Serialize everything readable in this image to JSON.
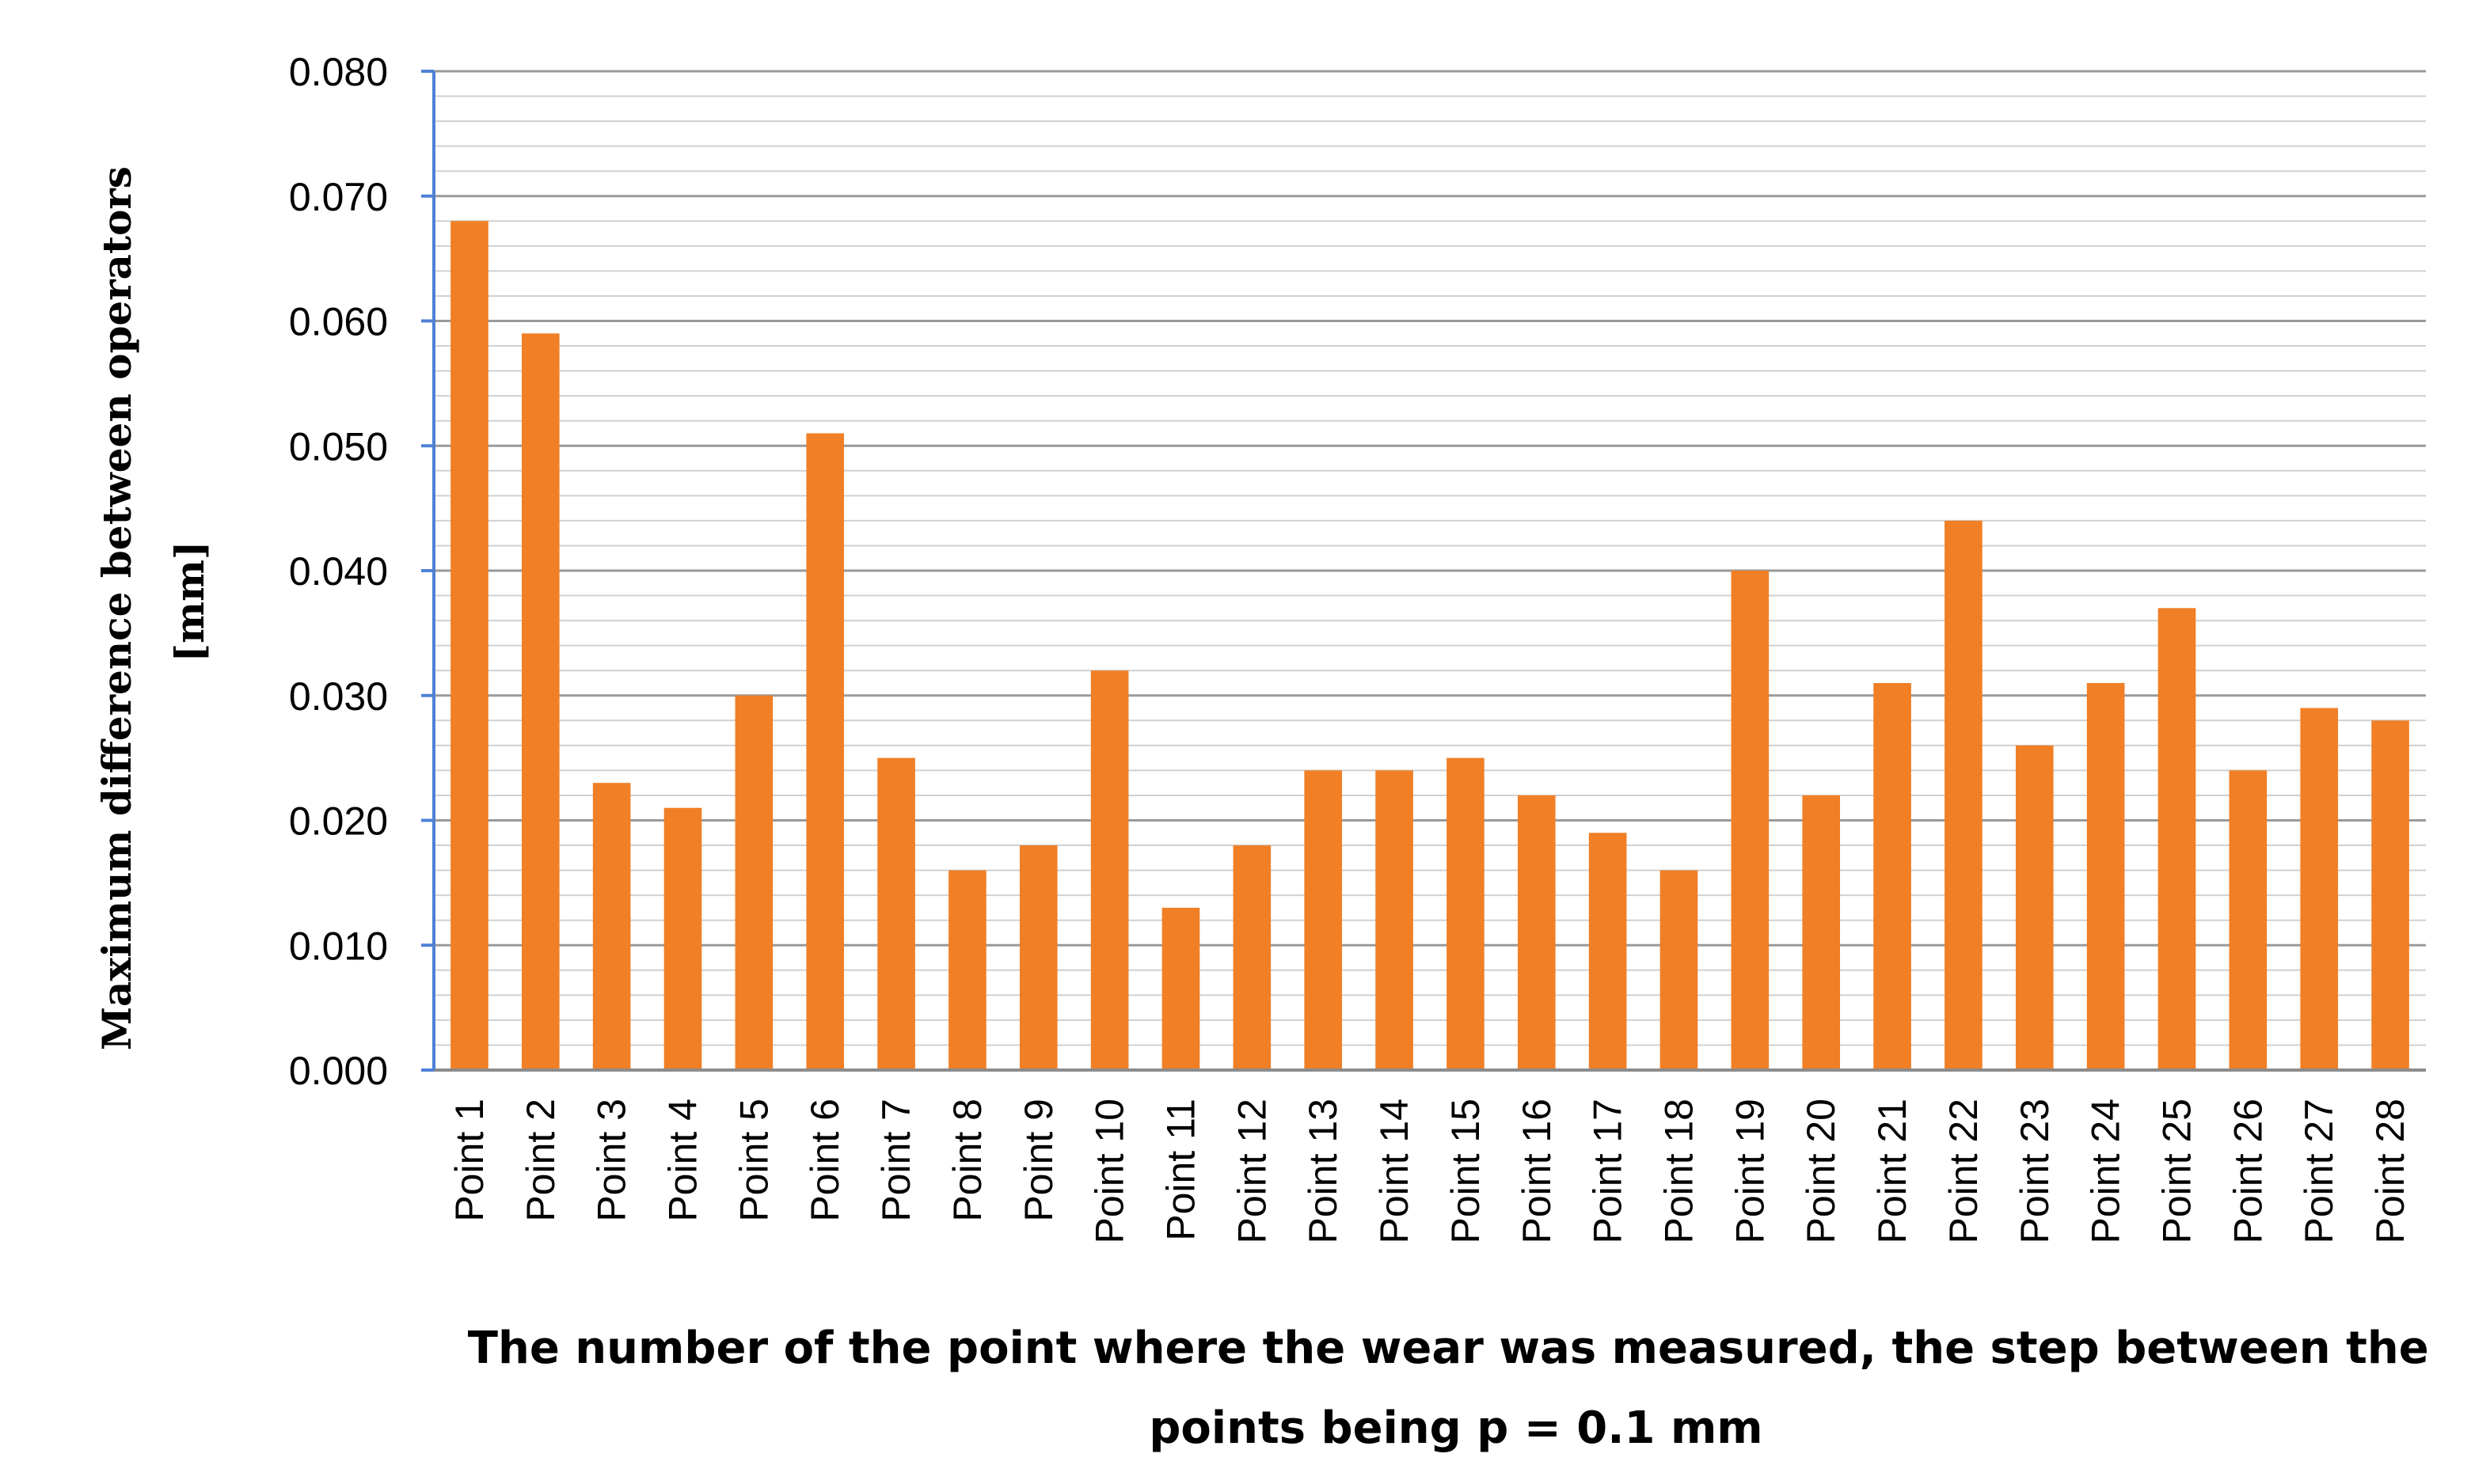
{
  "chart_data": {
    "type": "bar",
    "title": "",
    "ylabel_lines": [
      "Maximum difference between operators",
      "[mm]"
    ],
    "xlabel_lines": [
      "The number of the point where the wear was measured, the step between the",
      "points being p = 0.1 mm"
    ],
    "categories": [
      "Point 1",
      "Point 2",
      "Point 3",
      "Point 4",
      "Point 5",
      "Point 6",
      "Point 7",
      "Point 8",
      "Point 9",
      "Point 10",
      "Point 11",
      "Point 12",
      "Point 13",
      "Point 14",
      "Point 15",
      "Point 16",
      "Point 17",
      "Point 18",
      "Point 19",
      "Point 20",
      "Point 21",
      "Point 22",
      "Point 23",
      "Point 24",
      "Point 25",
      "Point 26",
      "Point 27",
      "Point 28"
    ],
    "values": [
      0.068,
      0.059,
      0.023,
      0.021,
      0.03,
      0.051,
      0.025,
      0.016,
      0.018,
      0.032,
      0.013,
      0.018,
      0.024,
      0.024,
      0.025,
      0.022,
      0.019,
      0.016,
      0.04,
      0.022,
      0.031,
      0.044,
      0.026,
      0.031,
      0.037,
      0.024,
      0.029,
      0.028
    ],
    "ylim": [
      0,
      0.08
    ],
    "yticks": [
      "0.000",
      "0.010",
      "0.020",
      "0.030",
      "0.040",
      "0.050",
      "0.060",
      "0.070",
      "0.080"
    ],
    "minor_ticks_per_major": 5,
    "grid": true,
    "bar_color": "#F07F26",
    "major_grid_color": "#9a9a9a",
    "minor_grid_color": "#d0d0d0",
    "axis_color": "#4f81d6"
  }
}
